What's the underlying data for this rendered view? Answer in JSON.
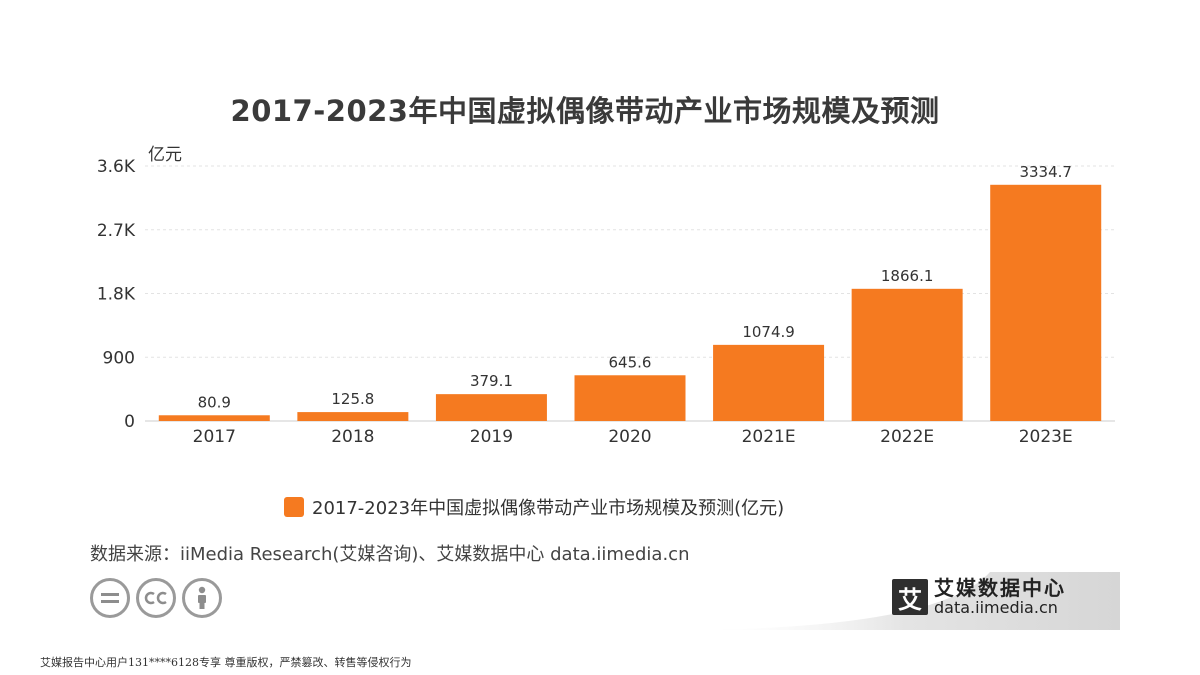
{
  "chart_data": {
    "type": "bar",
    "title": "2017-2023年中国虚拟偶像带动产业市场规模及预测",
    "unit_label": "亿元",
    "categories": [
      "2017",
      "2018",
      "2019",
      "2020",
      "2021E",
      "2022E",
      "2023E"
    ],
    "series": [
      {
        "name": "2017-2023年中国虚拟偶像带动产业市场规模及预测(亿元)",
        "values": [
          80.9,
          125.8,
          379.1,
          645.6,
          1074.9,
          1866.1,
          3334.7
        ],
        "value_labels": [
          "80.9",
          "125.8",
          "379.1",
          "645.6",
          "1074.9",
          "1866.1",
          "3334.7"
        ],
        "color": "#f57a20"
      }
    ],
    "ylim": [
      0,
      3600
    ],
    "yticks": [
      0,
      900,
      1800,
      2700,
      3600
    ],
    "ytick_labels": [
      "0",
      "900",
      "1.8K",
      "2.7K",
      "3.6K"
    ],
    "grid": true,
    "legend_position": "bottom"
  },
  "source": "数据来源：iiMedia Research(艾媒咨询)、艾媒数据中心 data.iimedia.cn",
  "license_icons": [
    "equals-icon",
    "cc-icon",
    "person-icon"
  ],
  "brand": {
    "logo_char": "艾",
    "name": "艾媒数据中心",
    "url": "data.iimedia.cn"
  },
  "footer": "艾媒报告中心用户131****6128专享 尊重版权，严禁篡改、转售等侵权行为"
}
